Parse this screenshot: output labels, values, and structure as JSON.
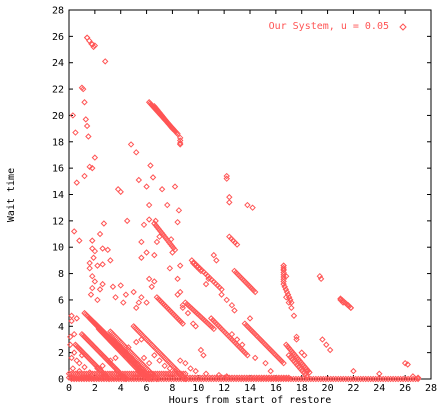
{
  "chart_data": {
    "type": "scatter",
    "title": "",
    "xlabel": "Hours from start of restore",
    "ylabel": "Wait time",
    "xlim": [
      0,
      28
    ],
    "ylim": [
      0,
      28
    ],
    "xticks": [
      "0",
      "2",
      "4",
      "6",
      "8",
      "10",
      "12",
      "14",
      "16",
      "18",
      "20",
      "22",
      "24",
      "26",
      "28"
    ],
    "yticks": [
      "0",
      "2",
      "4",
      "6",
      "8",
      "10",
      "12",
      "14",
      "16",
      "18",
      "20",
      "22",
      "24",
      "26",
      "28"
    ],
    "grid": false,
    "legend_position": "top-right",
    "color": "#ff5555",
    "marker": "diamond",
    "series": [
      {
        "name": "Our System, u = 0.05",
        "segments": [
          {
            "x0": 1.2,
            "y0": 5.0,
            "x1": 6.4,
            "y1": 0.0,
            "n": 60
          },
          {
            "x0": 1.6,
            "y0": 4.6,
            "x1": 6.2,
            "y1": 0.0,
            "n": 55
          },
          {
            "x0": 2.0,
            "y0": 4.2,
            "x1": 6.2,
            "y1": 0.0,
            "n": 50
          },
          {
            "x0": 2.3,
            "y0": 3.8,
            "x1": 6.0,
            "y1": 0.0,
            "n": 45
          },
          {
            "x0": 1.0,
            "y0": 3.4,
            "x1": 4.4,
            "y1": 0.0,
            "n": 42
          },
          {
            "x0": 0.5,
            "y0": 2.6,
            "x1": 3.1,
            "y1": 0.0,
            "n": 32
          },
          {
            "x0": 3.2,
            "y0": 3.6,
            "x1": 6.8,
            "y1": 0.0,
            "n": 40
          },
          {
            "x0": 5.0,
            "y0": 4.0,
            "x1": 9.0,
            "y1": 0.0,
            "n": 45
          },
          {
            "x0": 6.2,
            "y0": 21.0,
            "x1": 8.4,
            "y1": 18.6,
            "n": 30
          },
          {
            "x0": 6.6,
            "y0": 20.7,
            "x1": 8.0,
            "y1": 19.0,
            "n": 18
          },
          {
            "x0": 1.4,
            "y0": 25.9,
            "x1": 1.9,
            "y1": 25.2,
            "n": 4
          },
          {
            "x0": 6.6,
            "y0": 11.8,
            "x1": 8.2,
            "y1": 9.8,
            "n": 15
          },
          {
            "x0": 6.8,
            "y0": 6.2,
            "x1": 8.8,
            "y1": 4.2,
            "n": 18
          },
          {
            "x0": 9.0,
            "y0": 5.8,
            "x1": 11.2,
            "y1": 3.8,
            "n": 18
          },
          {
            "x0": 9.5,
            "y0": 9.0,
            "x1": 11.8,
            "y1": 6.8,
            "n": 16
          },
          {
            "x0": 11.0,
            "y0": 4.6,
            "x1": 13.8,
            "y1": 1.8,
            "n": 22
          },
          {
            "x0": 13.6,
            "y0": 4.2,
            "x1": 16.6,
            "y1": 1.2,
            "n": 25
          },
          {
            "x0": 16.8,
            "y0": 2.6,
            "x1": 18.6,
            "y1": 0.5,
            "n": 18
          },
          {
            "x0": 17.0,
            "y0": 1.8,
            "x1": 18.4,
            "y1": 0.2,
            "n": 12
          },
          {
            "x0": 12.8,
            "y0": 8.2,
            "x1": 14.4,
            "y1": 6.6,
            "n": 14
          },
          {
            "x0": 9.6,
            "y0": 8.8,
            "x1": 10.2,
            "y1": 8.2,
            "n": 5
          },
          {
            "x0": 12.4,
            "y0": 10.8,
            "x1": 13.0,
            "y1": 10.2,
            "n": 5
          },
          {
            "x0": 16.6,
            "y0": 8.6,
            "x1": 16.6,
            "y1": 7.4,
            "n": 8
          },
          {
            "x0": 16.6,
            "y0": 7.2,
            "x1": 17.2,
            "y1": 5.8,
            "n": 8
          },
          {
            "x0": 21.0,
            "y0": 6.1,
            "x1": 21.8,
            "y1": 5.4,
            "n": 7
          },
          {
            "x0": 0.2,
            "y0": 0.0,
            "x1": 27.0,
            "y1": 0.0,
            "n": 140
          },
          {
            "x0": 0.0,
            "y0": 0.1,
            "x1": 17.0,
            "y1": 0.1,
            "n": 90
          },
          {
            "x0": 0.0,
            "y0": 0.4,
            "x1": 9.0,
            "y1": 0.4,
            "n": 55
          }
        ],
        "points": [
          [
            1.4,
            25.9
          ],
          [
            1.8,
            25.4
          ],
          [
            2.0,
            25.3
          ],
          [
            2.8,
            24.1
          ],
          [
            0.3,
            20.0
          ],
          [
            1.0,
            22.1
          ],
          [
            1.1,
            22.0
          ],
          [
            1.2,
            21.0
          ],
          [
            0.5,
            18.7
          ],
          [
            1.3,
            19.7
          ],
          [
            1.4,
            19.2
          ],
          [
            1.5,
            18.4
          ],
          [
            1.6,
            16.1
          ],
          [
            1.8,
            16.0
          ],
          [
            2.0,
            16.8
          ],
          [
            1.2,
            15.4
          ],
          [
            0.6,
            14.9
          ],
          [
            0.4,
            11.2
          ],
          [
            0.8,
            10.5
          ],
          [
            1.8,
            10.5
          ],
          [
            1.8,
            9.9
          ],
          [
            2.0,
            9.7
          ],
          [
            1.9,
            9.2
          ],
          [
            1.6,
            8.8
          ],
          [
            1.6,
            8.4
          ],
          [
            1.8,
            7.8
          ],
          [
            2.0,
            7.4
          ],
          [
            1.8,
            6.9
          ],
          [
            1.7,
            6.4
          ],
          [
            2.2,
            6.0
          ],
          [
            2.4,
            6.8
          ],
          [
            2.6,
            7.2
          ],
          [
            2.2,
            8.6
          ],
          [
            2.6,
            8.7
          ],
          [
            2.6,
            9.9
          ],
          [
            2.4,
            11.0
          ],
          [
            2.7,
            11.8
          ],
          [
            3.0,
            9.8
          ],
          [
            3.2,
            9.0
          ],
          [
            3.4,
            7.0
          ],
          [
            3.6,
            6.2
          ],
          [
            3.8,
            14.4
          ],
          [
            4.0,
            14.2
          ],
          [
            4.5,
            12.0
          ],
          [
            4.8,
            17.8
          ],
          [
            5.2,
            17.2
          ],
          [
            5.4,
            15.1
          ],
          [
            6.0,
            14.6
          ],
          [
            6.2,
            13.2
          ],
          [
            6.3,
            16.2
          ],
          [
            6.5,
            15.3
          ],
          [
            6.7,
            12.0
          ],
          [
            6.2,
            12.1
          ],
          [
            5.8,
            11.7
          ],
          [
            5.6,
            10.4
          ],
          [
            5.6,
            9.2
          ],
          [
            6.0,
            9.6
          ],
          [
            6.6,
            9.4
          ],
          [
            6.8,
            10.4
          ],
          [
            7.0,
            10.8
          ],
          [
            7.2,
            14.4
          ],
          [
            7.6,
            13.2
          ],
          [
            7.9,
            10.6
          ],
          [
            8.0,
            9.6
          ],
          [
            8.2,
            14.6
          ],
          [
            8.4,
            11.9
          ],
          [
            8.5,
            12.8
          ],
          [
            8.6,
            18.1
          ],
          [
            8.6,
            18.3
          ],
          [
            8.6,
            17.8
          ],
          [
            8.6,
            17.9
          ],
          [
            8.6,
            8.6
          ],
          [
            8.4,
            7.6
          ],
          [
            8.4,
            6.4
          ],
          [
            8.6,
            6.6
          ],
          [
            6.2,
            7.6
          ],
          [
            6.4,
            7.0
          ],
          [
            6.6,
            7.4
          ],
          [
            6.0,
            5.8
          ],
          [
            5.6,
            6.2
          ],
          [
            5.4,
            5.8
          ],
          [
            5.2,
            5.4
          ],
          [
            5.0,
            6.6
          ],
          [
            4.4,
            6.4
          ],
          [
            4.2,
            5.8
          ],
          [
            4.0,
            7.1
          ],
          [
            7.8,
            8.4
          ],
          [
            8.8,
            5.6
          ],
          [
            8.8,
            5.4
          ],
          [
            9.2,
            5.0
          ],
          [
            9.6,
            4.2
          ],
          [
            9.8,
            4.0
          ],
          [
            10.2,
            2.2
          ],
          [
            10.4,
            1.8
          ],
          [
            10.8,
            7.6
          ],
          [
            10.6,
            7.2
          ],
          [
            11.2,
            9.4
          ],
          [
            11.4,
            9.0
          ],
          [
            12.2,
            15.4
          ],
          [
            12.2,
            15.2
          ],
          [
            12.4,
            13.8
          ],
          [
            12.4,
            13.4
          ],
          [
            11.8,
            6.4
          ],
          [
            12.2,
            6.0
          ],
          [
            12.6,
            5.6
          ],
          [
            12.8,
            5.2
          ],
          [
            12.6,
            3.4
          ],
          [
            13.0,
            3.0
          ],
          [
            13.4,
            2.6
          ],
          [
            13.8,
            13.2
          ],
          [
            14.2,
            13.0
          ],
          [
            14.0,
            4.6
          ],
          [
            14.4,
            1.6
          ],
          [
            15.2,
            1.2
          ],
          [
            15.6,
            0.6
          ],
          [
            16.6,
            8.6
          ],
          [
            16.6,
            8.3
          ],
          [
            16.8,
            7.8
          ],
          [
            16.8,
            6.2
          ],
          [
            17.0,
            5.8
          ],
          [
            17.2,
            5.4
          ],
          [
            17.4,
            4.8
          ],
          [
            17.6,
            3.2
          ],
          [
            17.6,
            3.0
          ],
          [
            18.0,
            2.0
          ],
          [
            18.2,
            1.8
          ],
          [
            18.4,
            0.6
          ],
          [
            19.4,
            7.8
          ],
          [
            19.5,
            7.6
          ],
          [
            19.6,
            3.0
          ],
          [
            19.9,
            2.6
          ],
          [
            20.2,
            2.2
          ],
          [
            21.0,
            6.0
          ],
          [
            21.2,
            5.8
          ],
          [
            21.6,
            5.6
          ],
          [
            21.8,
            5.4
          ],
          [
            22.0,
            0.6
          ],
          [
            24.0,
            0.4
          ],
          [
            26.0,
            1.2
          ],
          [
            26.2,
            1.1
          ],
          [
            26.6,
            0.2
          ],
          [
            27.0,
            0.1
          ],
          [
            0.2,
            1.6
          ],
          [
            0.6,
            1.4
          ],
          [
            0.8,
            1.2
          ],
          [
            1.0,
            1.8
          ],
          [
            0.4,
            2.0
          ],
          [
            0.2,
            4.8
          ],
          [
            0.2,
            4.4
          ],
          [
            0.6,
            4.6
          ],
          [
            0.1,
            3.2
          ],
          [
            0.4,
            3.4
          ],
          [
            0.1,
            2.6
          ],
          [
            0.3,
            0.8
          ],
          [
            0.8,
            0.6
          ],
          [
            1.2,
            0.9
          ],
          [
            1.6,
            0.5
          ],
          [
            2.2,
            0.8
          ],
          [
            2.6,
            1.0
          ],
          [
            3.2,
            1.4
          ],
          [
            3.6,
            1.6
          ],
          [
            4.2,
            2.0
          ],
          [
            4.6,
            2.4
          ],
          [
            5.2,
            2.8
          ],
          [
            5.6,
            3.0
          ],
          [
            5.8,
            1.6
          ],
          [
            6.2,
            1.2
          ],
          [
            6.6,
            1.8
          ],
          [
            7.0,
            1.4
          ],
          [
            7.4,
            1.0
          ],
          [
            7.8,
            0.8
          ],
          [
            8.2,
            0.6
          ],
          [
            8.6,
            1.4
          ],
          [
            9.0,
            1.2
          ],
          [
            9.4,
            0.8
          ],
          [
            9.8,
            0.6
          ],
          [
            10.6,
            0.4
          ],
          [
            11.6,
            0.3
          ],
          [
            12.2,
            0.2
          ]
        ]
      }
    ]
  }
}
